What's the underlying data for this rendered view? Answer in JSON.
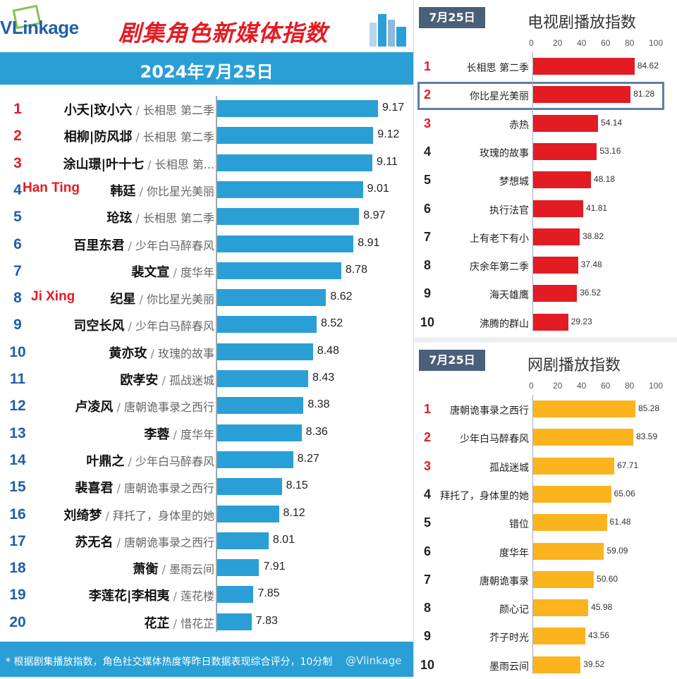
{
  "header": {
    "logo": "VLinkage",
    "title": "剧集角色新媒体指数",
    "date": "2024年7月25日"
  },
  "colors": {
    "left_bar": "#2a9fd6",
    "tv_bar": "#e31b23",
    "web_bar": "#fbb31e",
    "rank_red": "#e31b23",
    "rank_blue": "#1f5fa8",
    "rank_dark": "#222222"
  },
  "annotations": {
    "han_ting": "Han Ting",
    "ji_xing": "Ji Xing"
  },
  "footnote": "* 根据剧集播放指数，角色社交媒体热度等昨日数据表现综合评分，10分制",
  "watermark": "@Vlinkage",
  "chart_data": [
    {
      "type": "bar",
      "orientation": "horizontal",
      "title": "剧集角色新媒体指数",
      "subtitle": "2024年7月25日",
      "xlim": [
        0,
        10
      ],
      "ranks": [
        "1",
        "2",
        "3",
        "4",
        "5",
        "6",
        "7",
        "8",
        "9",
        "10",
        "11",
        "12",
        "13",
        "14",
        "15",
        "16",
        "17",
        "18",
        "19",
        "20"
      ],
      "roles": [
        "小夭|玟小六",
        "相柳|防风邶",
        "涂山璟|叶十七",
        "韩廷",
        "玱玹",
        "百里东君",
        "裴文宣",
        "纪星",
        "司空长风",
        "黄亦玫",
        "欧孝安",
        "卢凌风",
        "李蓉",
        "叶鼎之",
        "裴喜君",
        "刘绮梦",
        "苏无名",
        "萧衡",
        "李莲花|李相夷",
        "花芷"
      ],
      "dramas": [
        "长相思 第二季",
        "长相思 第二季",
        "长相思 第...",
        "你比星光美丽",
        "长相思 第二季",
        "少年白马醉春风",
        "度华年",
        "你比星光美丽",
        "少年白马醉春风",
        "玫瑰的故事",
        "孤战迷城",
        "唐朝诡事录之西行",
        "度华年",
        "少年白马醉春风",
        "唐朝诡事录之西行",
        "拜托了，身体里的她",
        "唐朝诡事录之西行",
        "墨雨云间",
        "莲花楼",
        "惜花芷"
      ],
      "values": [
        9.17,
        9.12,
        9.11,
        9.01,
        8.97,
        8.91,
        8.78,
        8.62,
        8.52,
        8.48,
        8.43,
        8.38,
        8.36,
        8.27,
        8.15,
        8.12,
        8.01,
        7.91,
        7.85,
        7.83
      ],
      "value_labels": [
        "9.17",
        "9.12",
        "9.11",
        "9.01",
        "8.97",
        "8.91",
        "8.78",
        "8.62",
        "8.52",
        "8.48",
        "8.43",
        "8.38",
        "8.36",
        "8.27",
        "8.15",
        "8.12",
        "8.01",
        "7.91",
        "7.85",
        "7.83"
      ]
    },
    {
      "type": "bar",
      "orientation": "horizontal",
      "title": "电视剧播放指数",
      "date_tag": "7月25日",
      "xlim": [
        0,
        100
      ],
      "xticks": [
        "0",
        "20",
        "40",
        "60",
        "80",
        "100"
      ],
      "ranks": [
        "1",
        "2",
        "3",
        "4",
        "5",
        "6",
        "7",
        "8",
        "9",
        "10"
      ],
      "categories": [
        "长相思 第二季",
        "你比星光美丽",
        "赤热",
        "玫瑰的故事",
        "梦想城",
        "执行法官",
        "上有老下有小",
        "庆余年第二季",
        "海天雄鹰",
        "沸腾的群山"
      ],
      "values": [
        84.62,
        81.28,
        54.14,
        53.16,
        48.18,
        41.81,
        38.82,
        37.48,
        36.52,
        29.23
      ],
      "value_labels": [
        "84.62",
        "81.28",
        "54.14",
        "53.16",
        "48.18",
        "41.81",
        "38.82",
        "37.48",
        "36.52",
        "29.23"
      ],
      "highlighted": "你比星光美丽"
    },
    {
      "type": "bar",
      "orientation": "horizontal",
      "title": "网剧播放指数",
      "date_tag": "7月25日",
      "xlim": [
        0,
        100
      ],
      "xticks": [
        "0",
        "20",
        "40",
        "60",
        "80",
        "100"
      ],
      "ranks": [
        "1",
        "2",
        "3",
        "4",
        "5",
        "6",
        "7",
        "8",
        "9",
        "10"
      ],
      "categories": [
        "唐朝诡事录之西行",
        "少年白马醉春风",
        "孤战迷城",
        "拜托了，身体里的她",
        "错位",
        "度华年",
        "唐朝诡事录",
        "颜心记",
        "芥子时光",
        "墨雨云间"
      ],
      "values": [
        85.28,
        83.59,
        67.71,
        65.06,
        61.48,
        59.09,
        50.6,
        45.98,
        43.56,
        39.52
      ],
      "value_labels": [
        "85.28",
        "83.59",
        "67.71",
        "65.06",
        "61.48",
        "59.09",
        "50.60",
        "45.98",
        "43.56",
        "39.52"
      ]
    }
  ]
}
